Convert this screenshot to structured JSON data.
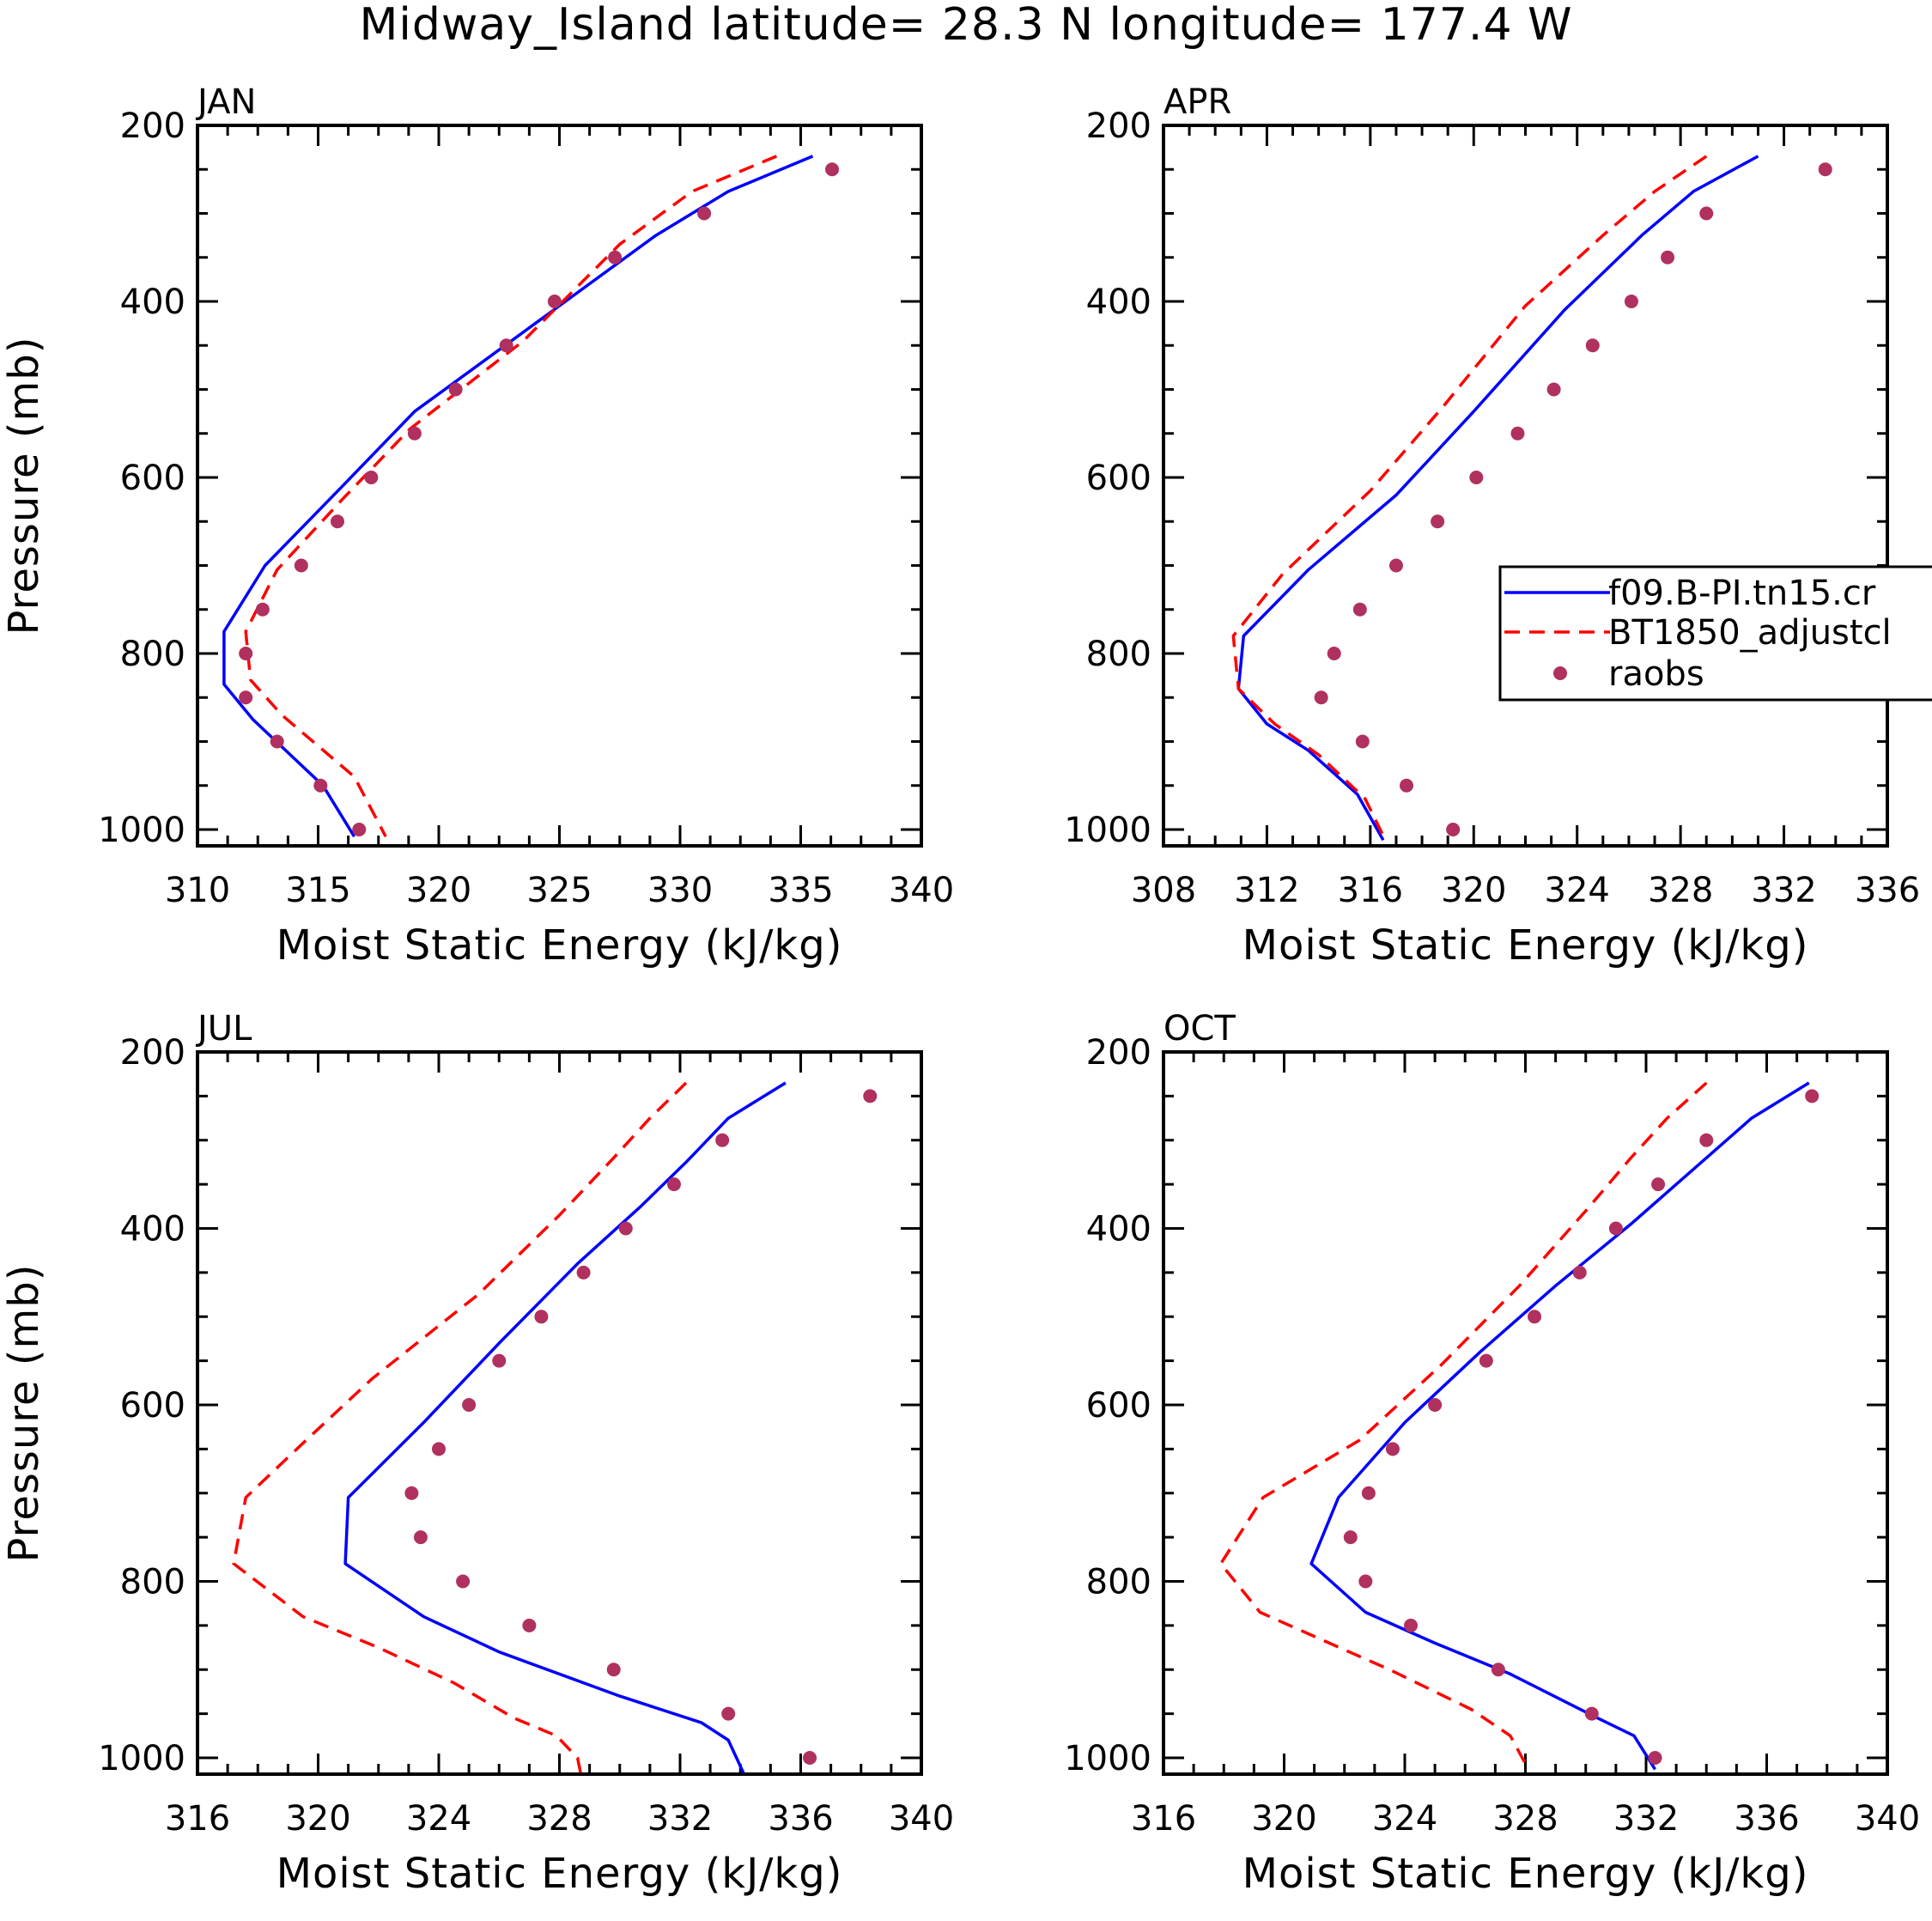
{
  "title": "Midway_Island  latitude= 28.3 N longitude= 177.4 W",
  "colors": {
    "model": "#0000ff",
    "control": "#ff0000",
    "raobs": "#b03060",
    "axis": "#000000",
    "background": "#ffffff"
  },
  "legend": {
    "entries": [
      {
        "label": "f09.B-PI.tn15.cr",
        "style": "solid",
        "color": "#0000ff"
      },
      {
        "label": "BT1850_adjustcl",
        "style": "dashed",
        "color": "#ff0000"
      },
      {
        "label": "raobs",
        "style": "dots",
        "color": "#b03060"
      }
    ]
  },
  "chart_data": [
    {
      "type": "line",
      "panel": "JAN",
      "xlabel": "Moist Static Energy (kJ/kg)",
      "ylabel": "Pressure (mb)",
      "xlim": [
        310,
        340
      ],
      "ylim": [
        1025,
        200
      ],
      "xticks": [
        310,
        315,
        320,
        325,
        330,
        335,
        340
      ],
      "yticks": [
        200,
        400,
        600,
        800,
        1000
      ],
      "series": [
        {
          "name": "f09.B-PI.tn15.cr",
          "style": "solid",
          "x": [
            335.5,
            332.0,
            329.0,
            324.0,
            319.0,
            316.0,
            312.8,
            311.1,
            311.1,
            312.3,
            315.2,
            316.5
          ],
          "y": [
            235,
            275,
            325,
            425,
            525,
            610,
            700,
            775,
            835,
            875,
            950,
            1008
          ]
        },
        {
          "name": "BT1850_adjustcl",
          "style": "dashed",
          "x": [
            334.0,
            330.5,
            327.5,
            323.5,
            318.8,
            316.0,
            313.3,
            312.0,
            312.2,
            313.5,
            316.5,
            317.8
          ],
          "y": [
            235,
            275,
            335,
            445,
            545,
            625,
            705,
            775,
            830,
            870,
            940,
            1008
          ]
        },
        {
          "name": "raobs",
          "style": "dots",
          "x": [
            336.3,
            331.0,
            327.3,
            324.8,
            322.8,
            320.7,
            319.0,
            317.2,
            315.8,
            314.3,
            312.7,
            312.0,
            312.0,
            313.3,
            315.1,
            316.7
          ],
          "y": [
            250,
            300,
            350,
            400,
            450,
            500,
            550,
            600,
            650,
            700,
            750,
            800,
            850,
            900,
            950,
            1000
          ]
        }
      ]
    },
    {
      "type": "line",
      "panel": "APR",
      "xlabel": "Moist Static Energy (kJ/kg)",
      "ylabel": "",
      "xlim": [
        308,
        336
      ],
      "ylim": [
        1025,
        200
      ],
      "xticks": [
        308,
        312,
        316,
        320,
        324,
        328,
        332,
        336
      ],
      "yticks": [
        200,
        400,
        600,
        800,
        1000
      ],
      "series": [
        {
          "name": "f09.B-PI.tn15.cr",
          "style": "solid",
          "x": [
            331.0,
            328.5,
            326.5,
            323.5,
            320.0,
            317.0,
            313.6,
            311.1,
            310.9,
            312.0,
            313.6,
            315.5,
            316.5
          ],
          "y": [
            235,
            275,
            325,
            410,
            525,
            620,
            705,
            780,
            840,
            880,
            910,
            960,
            1012
          ]
        },
        {
          "name": "BT1850_adjustcl",
          "style": "dashed",
          "x": [
            329.0,
            327.0,
            325.0,
            322.0,
            318.8,
            316.0,
            312.6,
            310.7,
            310.9,
            312.3,
            314.0,
            315.8,
            316.6
          ],
          "y": [
            235,
            275,
            325,
            405,
            520,
            615,
            710,
            780,
            840,
            880,
            915,
            965,
            1013
          ]
        },
        {
          "name": "raobs",
          "style": "dots",
          "x": [
            333.6,
            329.0,
            327.5,
            326.1,
            324.6,
            323.1,
            321.7,
            320.1,
            318.6,
            317.0,
            315.6,
            314.6,
            314.1,
            315.7,
            317.4,
            319.2
          ],
          "y": [
            250,
            300,
            350,
            400,
            450,
            500,
            550,
            600,
            650,
            700,
            750,
            800,
            850,
            900,
            950,
            1000
          ]
        }
      ]
    },
    {
      "type": "line",
      "panel": "JUL",
      "xlabel": "Moist Static Energy (kJ/kg)",
      "ylabel": "Pressure (mb)",
      "xlim": [
        316,
        340
      ],
      "ylim": [
        1025,
        200
      ],
      "xticks": [
        316,
        320,
        324,
        328,
        332,
        336,
        340
      ],
      "yticks": [
        200,
        400,
        600,
        800,
        1000
      ],
      "series": [
        {
          "name": "f09.B-PI.tn15.cr",
          "style": "solid",
          "x": [
            335.5,
            333.6,
            332.2,
            330.7,
            328.6,
            326.0,
            323.5,
            321.0,
            320.9,
            323.5,
            326.0,
            330.0,
            332.7,
            333.6,
            334.1
          ],
          "y": [
            235,
            275,
            325,
            375,
            440,
            530,
            620,
            705,
            780,
            840,
            880,
            930,
            960,
            980,
            1017
          ]
        },
        {
          "name": "BT1850_adjustcl",
          "style": "dashed",
          "x": [
            332.2,
            331.0,
            329.8,
            328.0,
            325.3,
            321.8,
            319.6,
            317.6,
            317.2,
            319.5,
            322.0,
            324.5,
            326.5,
            327.9,
            328.6,
            328.7
          ],
          "y": [
            235,
            275,
            320,
            385,
            475,
            570,
            640,
            705,
            780,
            840,
            875,
            915,
            955,
            975,
            1000,
            1017
          ]
        },
        {
          "name": "raobs",
          "style": "dots",
          "x": [
            338.3,
            333.4,
            331.8,
            330.2,
            328.8,
            327.4,
            326.0,
            325.0,
            324.0,
            323.1,
            323.4,
            324.8,
            327.0,
            329.8,
            333.6,
            336.3
          ],
          "y": [
            250,
            300,
            350,
            400,
            450,
            500,
            550,
            600,
            650,
            700,
            750,
            800,
            850,
            900,
            950,
            1000
          ]
        }
      ]
    },
    {
      "type": "line",
      "panel": "OCT",
      "xlabel": "Moist Static Energy (kJ/kg)",
      "ylabel": "",
      "xlim": [
        316,
        340
      ],
      "ylim": [
        1025,
        200
      ],
      "xticks": [
        316,
        320,
        324,
        328,
        332,
        336,
        340
      ],
      "yticks": [
        200,
        400,
        600,
        800,
        1000
      ],
      "series": [
        {
          "name": "f09.B-PI.tn15.cr",
          "style": "solid",
          "x": [
            337.4,
            335.5,
            334.0,
            331.5,
            329.0,
            326.5,
            324.0,
            321.8,
            320.9,
            322.7,
            325.0,
            327.5,
            330.4,
            331.6,
            332.3
          ],
          "y": [
            235,
            275,
            320,
            395,
            465,
            540,
            620,
            705,
            780,
            835,
            870,
            905,
            955,
            975,
            1013
          ]
        },
        {
          "name": "BT1850_adjustcl",
          "style": "dashed",
          "x": [
            334.0,
            332.7,
            331.5,
            330.0,
            327.8,
            325.2,
            322.5,
            319.3,
            317.9,
            319.2,
            321.5,
            323.5,
            326.2,
            327.5,
            328.1
          ],
          "y": [
            235,
            275,
            320,
            380,
            465,
            555,
            640,
            705,
            780,
            835,
            870,
            900,
            945,
            975,
            1013
          ]
        },
        {
          "name": "raobs",
          "style": "dots",
          "x": [
            337.5,
            334.0,
            332.4,
            331.0,
            329.8,
            328.3,
            326.7,
            325.0,
            323.6,
            322.8,
            322.2,
            322.7,
            324.2,
            327.1,
            330.2,
            332.3
          ],
          "y": [
            250,
            300,
            350,
            400,
            450,
            500,
            550,
            600,
            650,
            700,
            750,
            800,
            850,
            900,
            950,
            1000
          ]
        }
      ]
    }
  ]
}
